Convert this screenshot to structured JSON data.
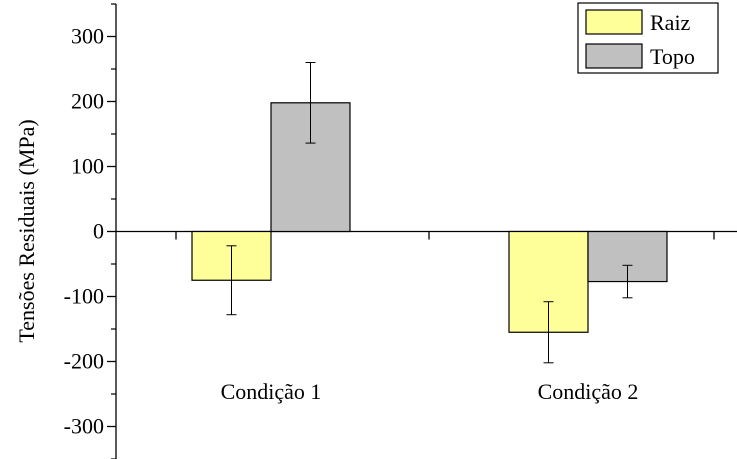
{
  "chart_data": {
    "type": "bar",
    "categories": [
      "Condição 1",
      "Condição 2"
    ],
    "series": [
      {
        "name": "Raiz",
        "values": [
          -75,
          -155
        ],
        "errors": [
          53,
          47
        ],
        "color": "#ffff99"
      },
      {
        "name": "Topo",
        "values": [
          198,
          -77
        ],
        "errors": [
          62,
          25
        ],
        "color": "#c0c0c0"
      }
    ],
    "ylabel": "Tensões Residuais (MPa)",
    "xlabel": "",
    "ylim": [
      -350,
      350
    ],
    "yticks": [
      -300,
      -200,
      -100,
      0,
      100,
      200,
      300
    ],
    "legend_position": "top-right",
    "grid": false
  }
}
